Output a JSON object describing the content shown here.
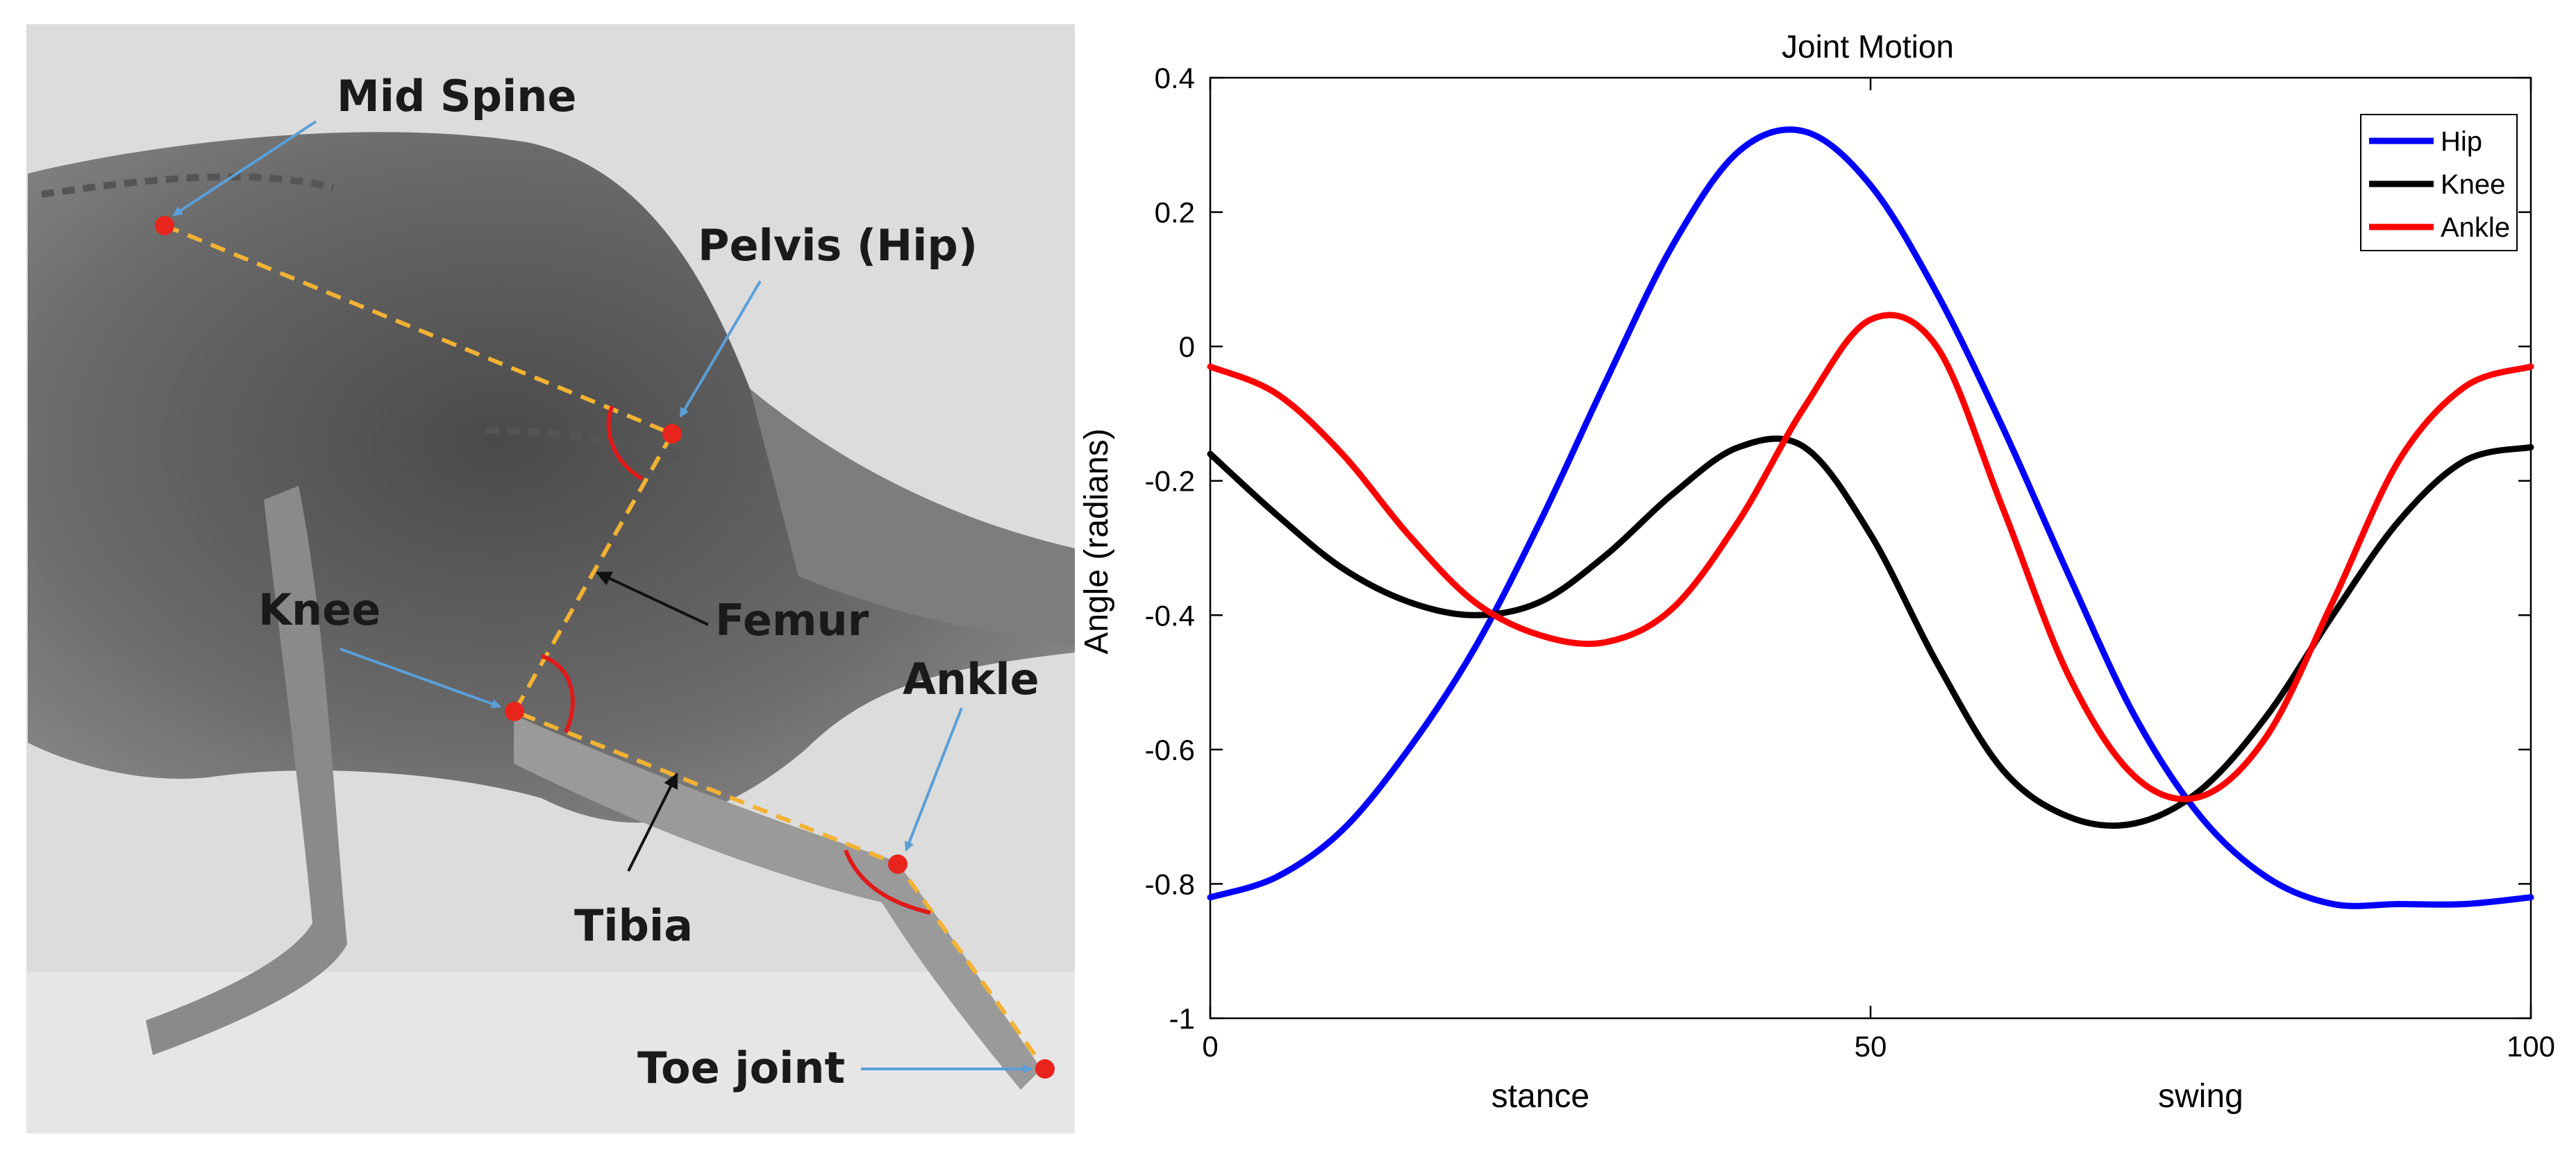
{
  "xray": {
    "labels": {
      "mid_spine": "Mid Spine",
      "pelvis": "Pelvis (Hip)",
      "knee": "Knee",
      "femur": "Femur",
      "ankle": "Ankle",
      "tibia": "Tibia",
      "toe_joint": "Toe joint"
    },
    "colors": {
      "joint_marker": "#e8241c",
      "segment_line": "#f2b233",
      "angle_arc": "#e01a1a",
      "pointer_arrow": "#5a9fd8",
      "black_arrow": "#111111"
    }
  },
  "chart_data": {
    "type": "line",
    "title": "Joint Motion",
    "xlabel": "",
    "ylabel": "Angle (radians)",
    "phase_labels": [
      "stance",
      "swing"
    ],
    "xlim": [
      0,
      100
    ],
    "ylim": [
      -1,
      0.4
    ],
    "xticks": [
      0,
      50,
      100
    ],
    "yticks": [
      0.4,
      0.2,
      0,
      -0.2,
      -0.4,
      -0.6,
      -0.8,
      -1
    ],
    "grid": false,
    "legend_position": "top-right",
    "x": [
      0,
      5,
      10,
      15,
      20,
      25,
      30,
      35,
      40,
      45,
      50,
      55,
      60,
      65,
      70,
      75,
      80,
      85,
      90,
      95,
      100
    ],
    "series": [
      {
        "name": "Hip",
        "color": "#0000ff",
        "values": [
          -0.82,
          -0.79,
          -0.72,
          -0.6,
          -0.45,
          -0.26,
          -0.05,
          0.15,
          0.29,
          0.32,
          0.24,
          0.08,
          -0.12,
          -0.34,
          -0.55,
          -0.7,
          -0.79,
          -0.83,
          -0.83,
          -0.83,
          -0.82
        ]
      },
      {
        "name": "Knee",
        "color": "#000000",
        "values": [
          -0.16,
          -0.25,
          -0.33,
          -0.38,
          -0.4,
          -0.38,
          -0.31,
          -0.22,
          -0.15,
          -0.15,
          -0.28,
          -0.47,
          -0.63,
          -0.7,
          -0.71,
          -0.66,
          -0.55,
          -0.4,
          -0.26,
          -0.17,
          -0.15
        ]
      },
      {
        "name": "Ankle",
        "color": "#ff0000",
        "values": [
          -0.03,
          -0.07,
          -0.16,
          -0.28,
          -0.38,
          -0.43,
          -0.44,
          -0.39,
          -0.26,
          -0.09,
          0.04,
          0.0,
          -0.24,
          -0.49,
          -0.64,
          -0.67,
          -0.58,
          -0.38,
          -0.17,
          -0.06,
          -0.03
        ]
      }
    ]
  }
}
